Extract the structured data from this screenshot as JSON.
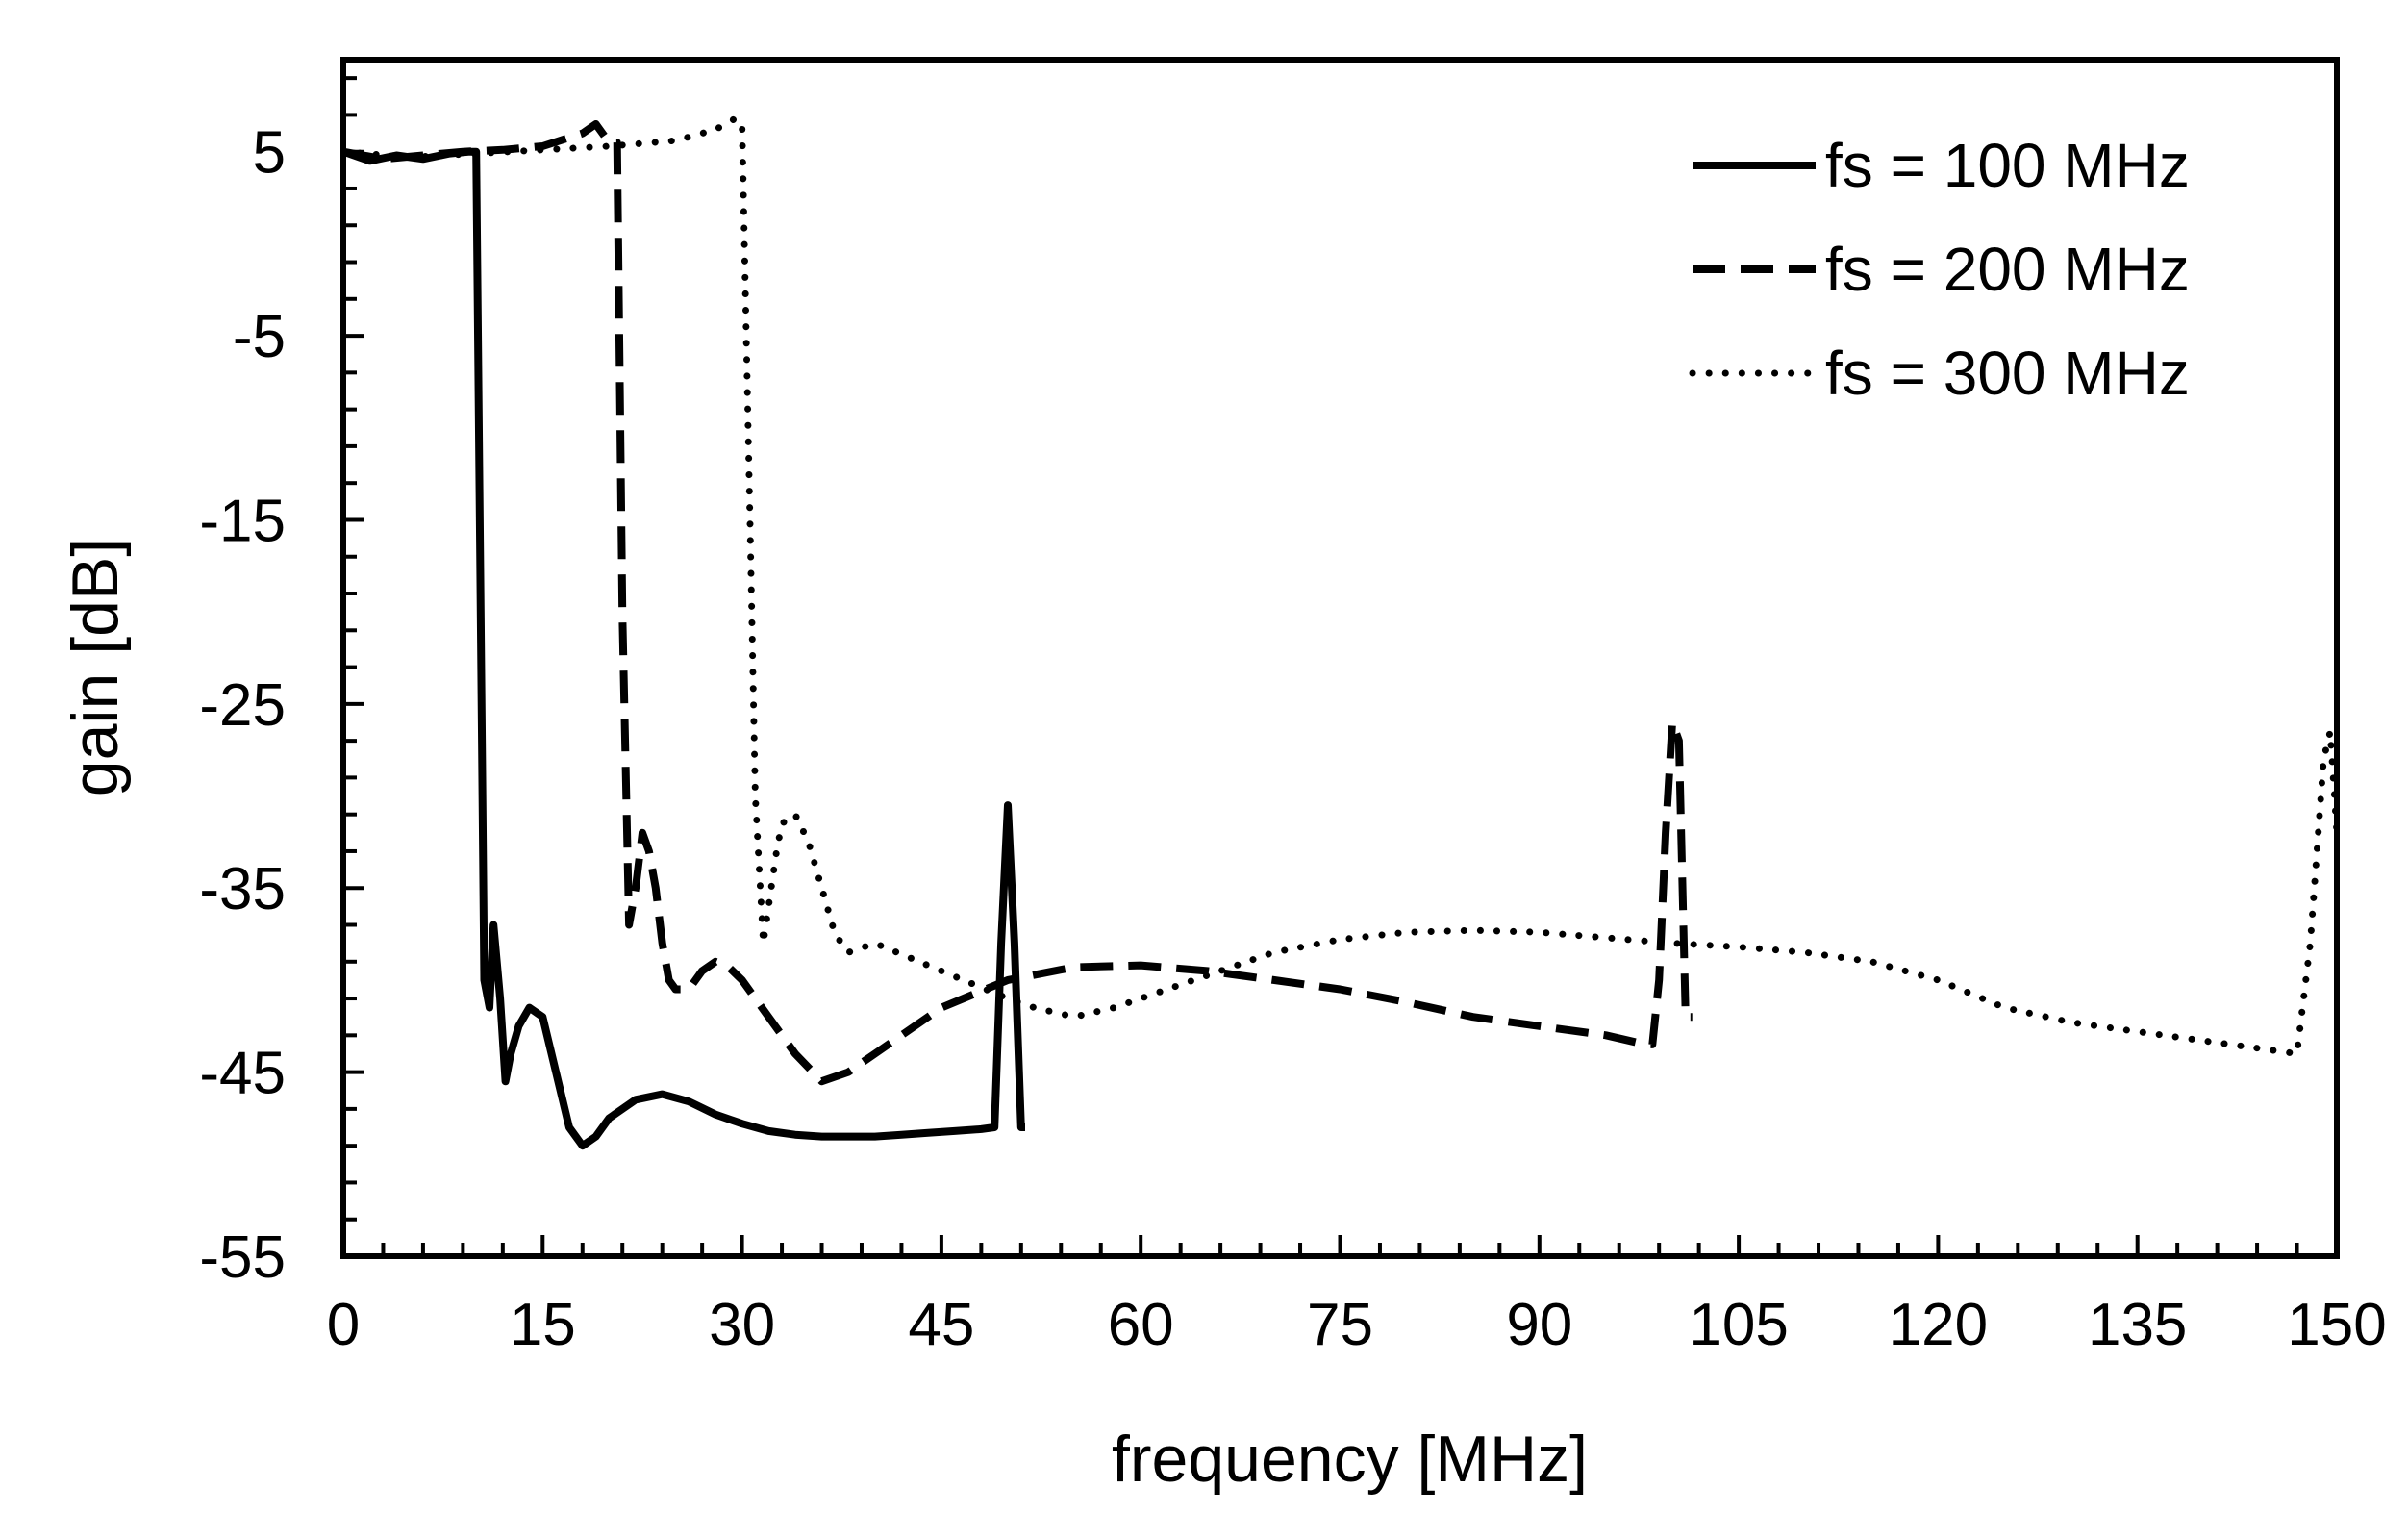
{
  "chart_data": {
    "type": "line",
    "title": "",
    "xlabel": "frequency [MHz]",
    "ylabel": "gain [dB]",
    "xlim": [
      0,
      150
    ],
    "ylim": [
      -55,
      10
    ],
    "xticks": [
      0,
      15,
      30,
      45,
      60,
      75,
      90,
      105,
      120,
      135,
      150
    ],
    "yticks": [
      -55,
      -45,
      -35,
      -25,
      -15,
      -5,
      5
    ],
    "legend_position": "top-right",
    "series": [
      {
        "name": "fs = 100 MHz",
        "style": "solid",
        "x": [
          0,
          2,
          4,
          6,
          8,
          9.5,
          10,
          10.6,
          11,
          11.3,
          11.8,
          12.2,
          12.6,
          13.2,
          14,
          15,
          16,
          17,
          18,
          19,
          20,
          22,
          24,
          26,
          28,
          30,
          32,
          34,
          36,
          38,
          40,
          42,
          44,
          46,
          48,
          49,
          49.5,
          50,
          50.5,
          51,
          51.3
        ],
        "y": [
          5,
          4.5,
          4.8,
          4.6,
          4.9,
          5,
          5,
          -40,
          -41.5,
          -37,
          -41,
          -45.5,
          -44,
          -42.5,
          -41.5,
          -42,
          -45,
          -48,
          -49,
          -48.5,
          -47.5,
          -46.5,
          -46.2,
          -46.6,
          -47.3,
          -47.8,
          -48.2,
          -48.4,
          -48.5,
          -48.5,
          -48.5,
          -48.4,
          -48.3,
          -48.2,
          -48.1,
          -48,
          -38,
          -30.5,
          -38,
          -48,
          -48
        ]
      },
      {
        "name": "fs = 200 MHz",
        "style": "dashed",
        "x": [
          0,
          3,
          6,
          9,
          12,
          15,
          18,
          19,
          20,
          20.6,
          21,
          21.5,
          22,
          22.5,
          23,
          23.5,
          24,
          24.5,
          25,
          26,
          27,
          28,
          29,
          30,
          32,
          34,
          36,
          38,
          40,
          45,
          50,
          55,
          60,
          65,
          70,
          75,
          80,
          85,
          90,
          95,
          98,
          98.5,
          99,
          99.5,
          100,
          100.5,
          101,
          101.5
        ],
        "y": [
          5,
          4.6,
          4.8,
          5,
          5.1,
          5.3,
          6,
          6.5,
          5.5,
          5.5,
          -20,
          -37,
          -35,
          -32,
          -33,
          -35,
          -38,
          -40,
          -40.5,
          -40.5,
          -39.5,
          -39,
          -39.3,
          -40,
          -42,
          -44,
          -45.5,
          -45,
          -44,
          -41.5,
          -40,
          -39.3,
          -39.2,
          -39.5,
          -40,
          -40.5,
          -41.2,
          -42,
          -42.5,
          -43,
          -43.5,
          -43.5,
          -40,
          -32,
          -26,
          -27,
          -42,
          -42
        ]
      },
      {
        "name": "fs = 300 MHz",
        "style": "dotted",
        "x": [
          0,
          5,
          10,
          15,
          20,
          25,
          28,
          29.5,
          30,
          30.6,
          31,
          31.6,
          32,
          32.6,
          33,
          34,
          35,
          36,
          37,
          38,
          40,
          45,
          50,
          52,
          55,
          58,
          62,
          66,
          70,
          75,
          80,
          85,
          90,
          95,
          100,
          105,
          110,
          115,
          120,
          125,
          130,
          135,
          140,
          145,
          147,
          148,
          149,
          149.5,
          150
        ],
        "y": [
          5,
          4.7,
          4.9,
          5.1,
          5.3,
          5.6,
          6.2,
          6.8,
          6.5,
          -15,
          -30,
          -38,
          -36,
          -33,
          -31.5,
          -31,
          -32.5,
          -35,
          -37.5,
          -38.5,
          -38,
          -39.5,
          -41,
          -41.5,
          -42,
          -41.5,
          -40.5,
          -39.5,
          -38.5,
          -37.8,
          -37.4,
          -37.3,
          -37.4,
          -37.7,
          -38,
          -38.2,
          -38.5,
          -39,
          -40,
          -41.5,
          -42.3,
          -42.8,
          -43.3,
          -43.8,
          -44,
          -38,
          -28,
          -26.5,
          -32
        ]
      }
    ]
  }
}
